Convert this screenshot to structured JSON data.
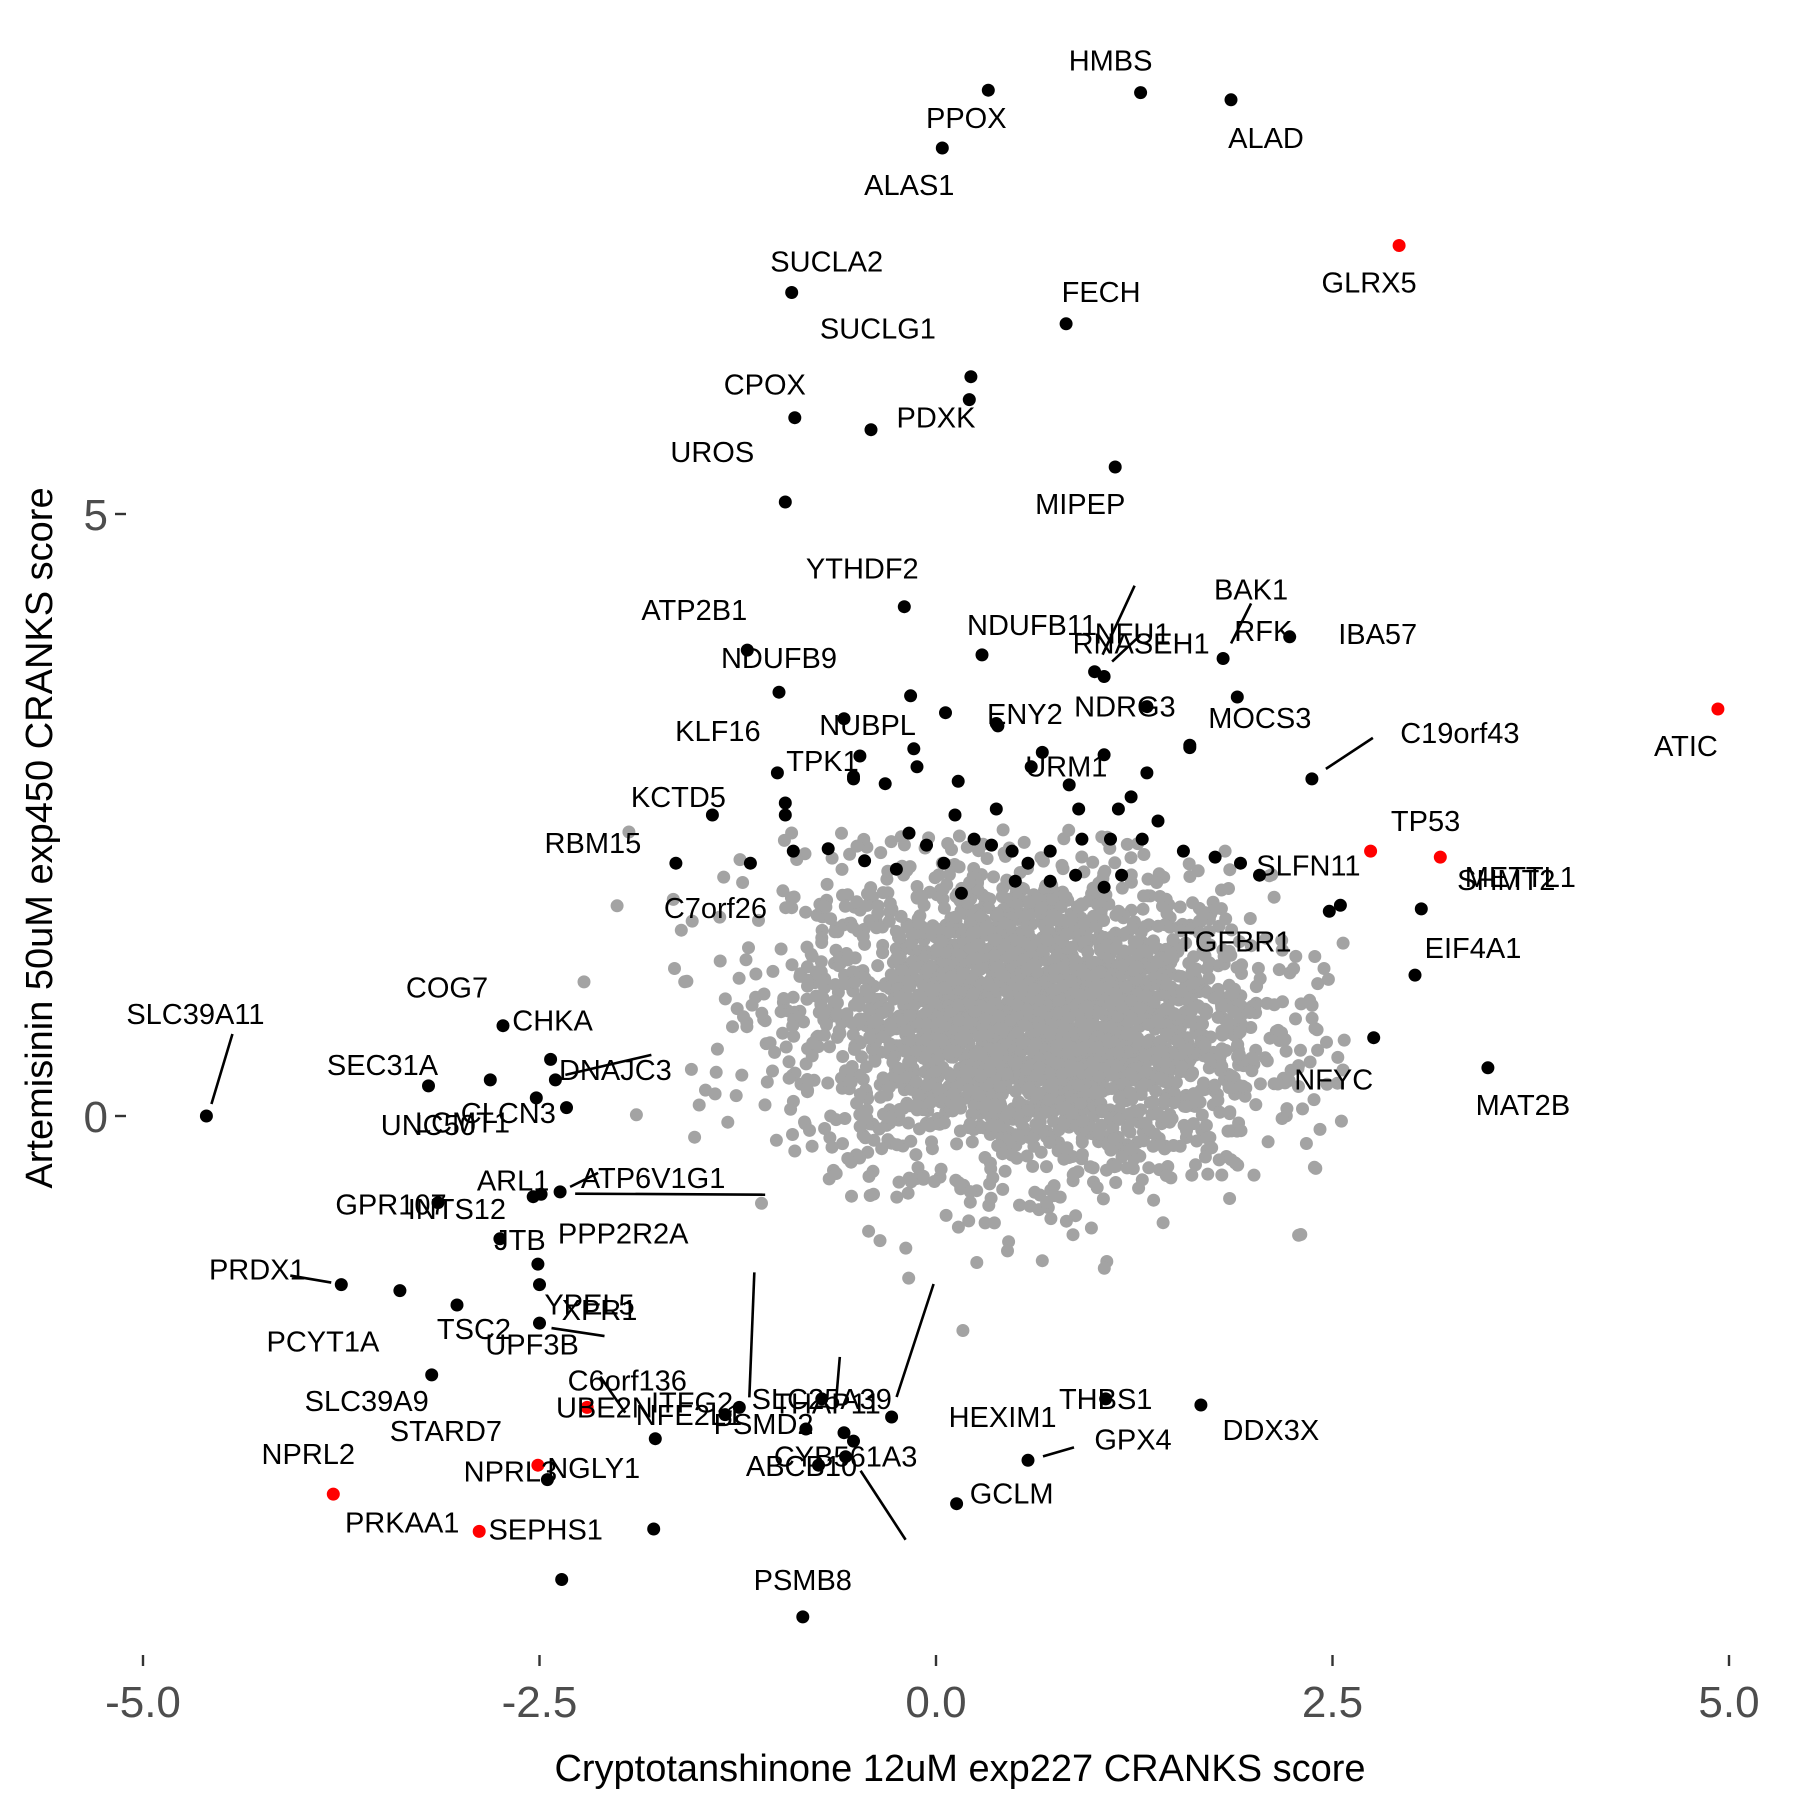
{
  "chart_data": {
    "type": "scatter",
    "title": "",
    "xlabel": "Cryptotanshinone 12uM exp227 CRANKS score",
    "ylabel": "Artemisinin 50uM exp450 CRANKS score",
    "xlim": [
      -5.2,
      5.2
    ],
    "ylim": [
      -4.45,
      9.15
    ],
    "grid": false,
    "legend": "none",
    "x_ticks": [
      {
        "value": -5,
        "label": "-5.0"
      },
      {
        "value": -2.5,
        "label": "-2.5"
      },
      {
        "value": 0,
        "label": "0.0"
      },
      {
        "value": 2.5,
        "label": "2.5"
      },
      {
        "value": 5,
        "label": "5.0"
      }
    ],
    "y_ticks": [
      {
        "value": 0,
        "label": "0"
      },
      {
        "value": 5,
        "label": "5"
      }
    ],
    "colors": {
      "background_points": "#a3a3a3",
      "highlight": "#000000",
      "special": "#ff0000",
      "leader": "#000000"
    },
    "background_cloud": {
      "description_count": 3000,
      "center": [
        0.6,
        0.8
      ],
      "sd": [
        0.75,
        0.65
      ]
    },
    "labeled_genes": [
      {
        "gene": "HMBS",
        "x": 1.29,
        "y": 8.5,
        "color": "black"
      },
      {
        "gene": "PPOX",
        "x": 0.33,
        "y": 8.52,
        "color": "black"
      },
      {
        "gene": "ALAD",
        "x": 1.86,
        "y": 8.44,
        "color": "black"
      },
      {
        "gene": "ALAS1",
        "x": 0.04,
        "y": 8.04,
        "color": "black"
      },
      {
        "gene": "GLRX5",
        "x": 2.92,
        "y": 7.23,
        "color": "red"
      },
      {
        "gene": "SUCLA2",
        "x": -0.91,
        "y": 6.84,
        "color": "black"
      },
      {
        "gene": "FECH",
        "x": 0.82,
        "y": 6.58,
        "color": "black"
      },
      {
        "gene": "CPOX",
        "x": -0.89,
        "y": 5.8,
        "color": "black"
      },
      {
        "gene": "PDXK",
        "x": -0.41,
        "y": 5.7,
        "color": "black"
      },
      {
        "gene": "MIPEP",
        "x": 1.13,
        "y": 5.39,
        "color": "black"
      },
      {
        "gene": "UROS",
        "x": -0.95,
        "y": 5.1,
        "color": "black"
      },
      {
        "gene": "SUCLG1",
        "x": 0.22,
        "y": 6.14,
        "color": "black"
      },
      {
        "gene": "YTHDF2",
        "x": -0.2,
        "y": 4.23,
        "color": "black"
      },
      {
        "gene": "ATP2B1",
        "x": -1.19,
        "y": 3.87,
        "color": "black"
      },
      {
        "gene": "NFU1",
        "x": 1.0,
        "y": 3.69,
        "color": "black"
      },
      {
        "gene": "NDUFB11",
        "x": 0.29,
        "y": 3.83,
        "color": "black"
      },
      {
        "gene": "BAK1",
        "x": 1.81,
        "y": 3.8,
        "color": "black"
      },
      {
        "gene": "IBA57",
        "x": 2.23,
        "y": 3.98,
        "color": "black"
      },
      {
        "gene": "RNASEH1",
        "x": 1.06,
        "y": 3.65,
        "color": "black"
      },
      {
        "gene": "NDUFB9",
        "x": -0.99,
        "y": 3.52,
        "color": "black"
      },
      {
        "gene": "NUBPL",
        "x": -0.16,
        "y": 3.49,
        "color": "black"
      },
      {
        "gene": "ENY2",
        "x": 0.39,
        "y": 3.24,
        "color": "black"
      },
      {
        "gene": "NDRG3",
        "x": 1.33,
        "y": 3.4,
        "color": "black"
      },
      {
        "gene": "RFK",
        "x": 1.9,
        "y": 3.48,
        "color": "black"
      },
      {
        "gene": "ATIC",
        "x": 4.93,
        "y": 3.38,
        "color": "red"
      },
      {
        "gene": "KLF16",
        "x": -0.48,
        "y": 2.99,
        "color": "black"
      },
      {
        "gene": "TPK1",
        "x": -0.52,
        "y": 2.8,
        "color": "black"
      },
      {
        "gene": "URM1",
        "x": 0.67,
        "y": 3.02,
        "color": "black"
      },
      {
        "gene": "MOCS3",
        "x": 1.6,
        "y": 3.08,
        "color": "black"
      },
      {
        "gene": "C19orf43",
        "x": 2.37,
        "y": 2.8,
        "color": "black"
      },
      {
        "gene": "KCTD5",
        "x": -1.41,
        "y": 2.5,
        "color": "black"
      },
      {
        "gene": "TP53",
        "x": 2.74,
        "y": 2.2,
        "color": "red"
      },
      {
        "gene": "METTL1",
        "x": 3.18,
        "y": 2.15,
        "color": "red"
      },
      {
        "gene": "RBM15",
        "x": -1.64,
        "y": 2.1,
        "color": "black"
      },
      {
        "gene": "C7orf26",
        "x": -1.17,
        "y": 2.1,
        "color": "black"
      },
      {
        "gene": "SLFN11",
        "x": 2.55,
        "y": 1.75,
        "color": "black"
      },
      {
        "gene": "TGFBR1",
        "x": 2.48,
        "y": 1.7,
        "color": "black"
      },
      {
        "gene": "SHMT2",
        "x": 3.06,
        "y": 1.72,
        "color": "black"
      },
      {
        "gene": "EIF4A1",
        "x": 3.02,
        "y": 1.17,
        "color": "black"
      },
      {
        "gene": "NFYC",
        "x": 2.76,
        "y": 0.65,
        "color": "black"
      },
      {
        "gene": "MAT2B",
        "x": 3.48,
        "y": 0.4,
        "color": "black"
      },
      {
        "gene": "COG7",
        "x": -2.73,
        "y": 0.75,
        "color": "black"
      },
      {
        "gene": "SLC39A11",
        "x": -4.6,
        "y": 0.0,
        "color": "black"
      },
      {
        "gene": "SEC31A",
        "x": -3.2,
        "y": 0.25,
        "color": "black"
      },
      {
        "gene": "CHKA",
        "x": -2.43,
        "y": 0.47,
        "color": "black"
      },
      {
        "gene": "DNAJC3",
        "x": -2.4,
        "y": 0.3,
        "color": "black"
      },
      {
        "gene": "UNC50",
        "x": -2.81,
        "y": 0.3,
        "color": "black"
      },
      {
        "gene": "CLCN3",
        "x": -2.52,
        "y": 0.15,
        "color": "black"
      },
      {
        "gene": "LCMT1",
        "x": -2.33,
        "y": 0.07,
        "color": "black"
      },
      {
        "gene": "GPR107",
        "x": -3.14,
        "y": -0.72,
        "color": "black"
      },
      {
        "gene": "ARL1",
        "x": -2.49,
        "y": -0.65,
        "color": "black"
      },
      {
        "gene": "ATP6V1G1",
        "x": -2.37,
        "y": -0.63,
        "color": "black"
      },
      {
        "gene": "PPP2R2A",
        "x": -2.54,
        "y": -0.67,
        "color": "black"
      },
      {
        "gene": "JTB",
        "x": -2.51,
        "y": -1.23,
        "color": "black"
      },
      {
        "gene": "INTS12",
        "x": -2.75,
        "y": -1.02,
        "color": "black"
      },
      {
        "gene": "PRDX1",
        "x": -3.75,
        "y": -1.4,
        "color": "black"
      },
      {
        "gene": "YPEL5",
        "x": -2.5,
        "y": -1.4,
        "color": "black"
      },
      {
        "gene": "PCYT1A",
        "x": -3.38,
        "y": -1.45,
        "color": "black"
      },
      {
        "gene": "XPR1",
        "x": -2.5,
        "y": -1.72,
        "color": "black"
      },
      {
        "gene": "TSC2",
        "x": -3.02,
        "y": -1.57,
        "color": "black"
      },
      {
        "gene": "UBE2N",
        "x": -1.24,
        "y": -2.42,
        "color": "black"
      },
      {
        "gene": "SLC25A39",
        "x": -0.72,
        "y": -2.35,
        "color": "black"
      },
      {
        "gene": "HEXIM1",
        "x": -0.28,
        "y": -2.5,
        "color": "black"
      },
      {
        "gene": "ITFG2",
        "x": -1.33,
        "y": -2.48,
        "color": "black"
      },
      {
        "gene": "THAP11",
        "x": -0.58,
        "y": -2.63,
        "color": "black"
      },
      {
        "gene": "THBS1",
        "x": 1.07,
        "y": -2.35,
        "color": "black"
      },
      {
        "gene": "SLC39A9",
        "x": -3.18,
        "y": -2.15,
        "color": "black"
      },
      {
        "gene": "ABCB10",
        "x": -0.52,
        "y": -2.7,
        "color": "black"
      },
      {
        "gene": "DDX3X",
        "x": 1.67,
        "y": -2.4,
        "color": "black"
      },
      {
        "gene": "STARD7",
        "x": -2.51,
        "y": -2.9,
        "color": "red"
      },
      {
        "gene": "UPF3B",
        "x": -2.2,
        "y": -2.42,
        "color": "red"
      },
      {
        "gene": "NFE2L1",
        "x": -0.82,
        "y": -2.6,
        "color": "black"
      },
      {
        "gene": "GPX4",
        "x": 0.58,
        "y": -2.86,
        "color": "black"
      },
      {
        "gene": "NPRL2",
        "x": -3.8,
        "y": -3.14,
        "color": "red"
      },
      {
        "gene": "C6orf136",
        "x": -1.77,
        "y": -2.68,
        "color": "black"
      },
      {
        "gene": "PSMD2",
        "x": -0.74,
        "y": -2.9,
        "color": "black"
      },
      {
        "gene": "NPRL3",
        "x": -2.45,
        "y": -3.02,
        "color": "black"
      },
      {
        "gene": "PRKAA1",
        "x": -2.88,
        "y": -3.45,
        "color": "red"
      },
      {
        "gene": "GCLM",
        "x": 0.13,
        "y": -3.22,
        "color": "black"
      },
      {
        "gene": "CYB561A3",
        "x": -0.57,
        "y": -2.83,
        "color": "black"
      },
      {
        "gene": "NGLY1",
        "x": -1.78,
        "y": -3.43,
        "color": "black"
      },
      {
        "gene": "SEPHS1",
        "x": -2.36,
        "y": -3.85,
        "color": "black"
      },
      {
        "gene": "PSMB8",
        "x": -0.84,
        "y": -4.16,
        "color": "black"
      }
    ],
    "extra_highlight_points": [
      [
        0.21,
        5.95
      ],
      [
        -0.58,
        3.3
      ],
      [
        0.06,
        3.35
      ],
      [
        0.38,
        3.26
      ],
      [
        -0.14,
        3.05
      ],
      [
        1.06,
        3.0
      ],
      [
        1.6,
        3.06
      ],
      [
        -1.0,
        2.85
      ],
      [
        -0.52,
        2.82
      ],
      [
        -0.32,
        2.76
      ],
      [
        -0.12,
        2.9
      ],
      [
        0.14,
        2.78
      ],
      [
        1.33,
        2.85
      ],
      [
        0.6,
        2.9
      ],
      [
        -0.95,
        2.5
      ],
      [
        0.12,
        2.5
      ],
      [
        0.38,
        2.55
      ],
      [
        0.9,
        2.55
      ],
      [
        1.15,
        2.55
      ],
      [
        1.4,
        2.45
      ],
      [
        -0.9,
        2.2
      ],
      [
        -0.68,
        2.22
      ],
      [
        -0.45,
        2.12
      ],
      [
        -0.17,
        2.35
      ],
      [
        0.35,
        2.25
      ],
      [
        0.58,
        2.1
      ],
      [
        0.92,
        2.3
      ],
      [
        1.3,
        2.3
      ],
      [
        1.76,
        2.15
      ],
      [
        1.92,
        2.1
      ],
      [
        -0.25,
        2.05
      ],
      [
        0.05,
        2.1
      ],
      [
        0.5,
        1.95
      ],
      [
        0.72,
        1.95
      ],
      [
        0.88,
        2.0
      ],
      [
        1.17,
        2.0
      ],
      [
        1.56,
        2.2
      ],
      [
        2.04,
        2.0
      ],
      [
        0.16,
        1.85
      ],
      [
        0.48,
        2.2
      ],
      [
        -0.06,
        2.25
      ],
      [
        0.24,
        2.3
      ],
      [
        0.72,
        2.2
      ],
      [
        1.1,
        2.3
      ],
      [
        -0.95,
        2.6
      ],
      [
        0.84,
        2.75
      ],
      [
        1.23,
        2.65
      ],
      [
        1.06,
        1.9
      ]
    ]
  }
}
